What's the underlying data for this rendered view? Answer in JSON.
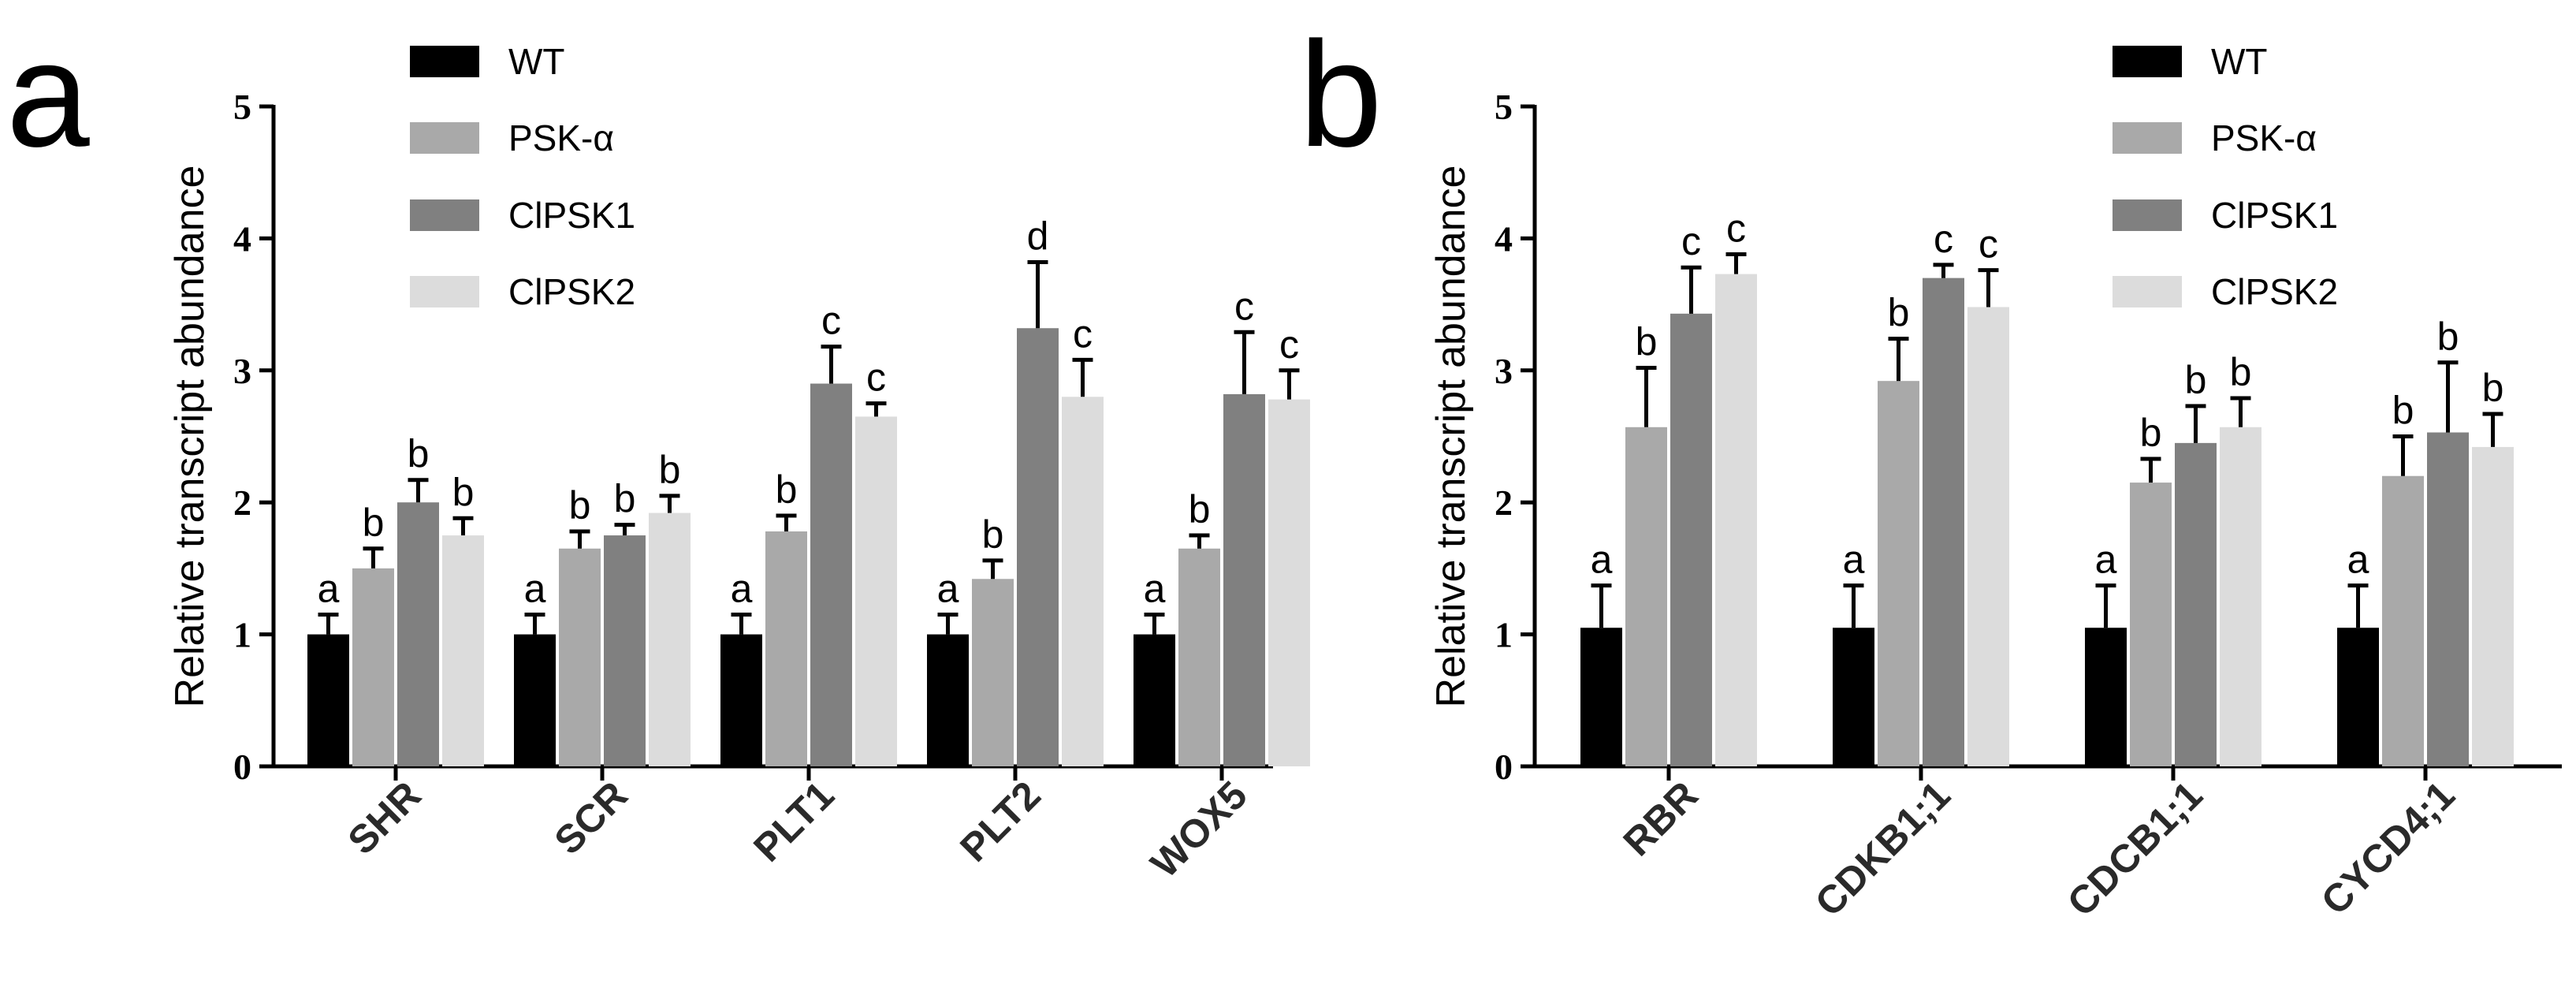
{
  "colors": {
    "WT": "#000000",
    "PSK-α": "#a9a9a9",
    "ClPSK1": "#808080",
    "ClPSK2": "#dcdcdc",
    "axis": "#000000"
  },
  "chart_data": [
    {
      "panel": "a",
      "type": "bar",
      "ylabel": "Relative transcript abundance",
      "ylim": [
        0,
        5
      ],
      "yticks": [
        "0",
        "1",
        "2",
        "3",
        "4",
        "5"
      ],
      "categories": [
        "SHR",
        "SCR",
        "PLT1",
        "PLT2",
        "WOX5"
      ],
      "series": [
        {
          "name": "WT",
          "values": [
            1.0,
            1.0,
            1.0,
            1.0,
            1.0
          ],
          "errors": [
            0.15,
            0.15,
            0.15,
            0.15,
            0.15
          ],
          "labels": [
            "a",
            "a",
            "a",
            "a",
            "a"
          ]
        },
        {
          "name": "PSK-α",
          "values": [
            1.5,
            1.65,
            1.78,
            1.42,
            1.65
          ],
          "errors": [
            0.15,
            0.13,
            0.12,
            0.14,
            0.1
          ],
          "labels": [
            "b",
            "b",
            "b",
            "b",
            "b"
          ]
        },
        {
          "name": "ClPSK1",
          "values": [
            2.0,
            1.75,
            2.9,
            3.32,
            2.82
          ],
          "errors": [
            0.17,
            0.08,
            0.28,
            0.5,
            0.47
          ],
          "labels": [
            "b",
            "b",
            "c",
            "d",
            "c"
          ]
        },
        {
          "name": "ClPSK2",
          "values": [
            1.75,
            1.92,
            2.65,
            2.8,
            2.78
          ],
          "errors": [
            0.13,
            0.13,
            0.1,
            0.28,
            0.22
          ],
          "labels": [
            "b",
            "b",
            "c",
            "c",
            "c"
          ]
        }
      ],
      "legend": [
        "WT",
        "PSK-α",
        "ClPSK1",
        "ClPSK2"
      ]
    },
    {
      "panel": "b",
      "type": "bar",
      "ylabel": "Relative transcript abundance",
      "ylim": [
        0,
        5
      ],
      "yticks": [
        "0",
        "1",
        "2",
        "3",
        "4",
        "5"
      ],
      "categories": [
        "RBR",
        "CDKB1;1",
        "CDCB1;1",
        "CYCD4;1"
      ],
      "series": [
        {
          "name": "WT",
          "values": [
            1.05,
            1.05,
            1.05,
            1.05
          ],
          "errors": [
            0.32,
            0.32,
            0.32,
            0.32
          ],
          "labels": [
            "a",
            "a",
            "a",
            "a"
          ]
        },
        {
          "name": "PSK-α",
          "values": [
            2.57,
            2.92,
            2.15,
            2.2
          ],
          "errors": [
            0.45,
            0.32,
            0.18,
            0.3
          ],
          "labels": [
            "b",
            "b",
            "b",
            "b"
          ]
        },
        {
          "name": "ClPSK1",
          "values": [
            3.43,
            3.7,
            2.45,
            2.53
          ],
          "errors": [
            0.35,
            0.1,
            0.28,
            0.53
          ],
          "labels": [
            "c",
            "c",
            "b",
            "b"
          ]
        },
        {
          "name": "ClPSK2",
          "values": [
            3.73,
            3.48,
            2.57,
            2.42
          ],
          "errors": [
            0.15,
            0.28,
            0.22,
            0.25
          ],
          "labels": [
            "c",
            "c",
            "b",
            "b"
          ]
        }
      ],
      "legend": [
        "WT",
        "PSK-α",
        "ClPSK1",
        "ClPSK2"
      ]
    }
  ]
}
